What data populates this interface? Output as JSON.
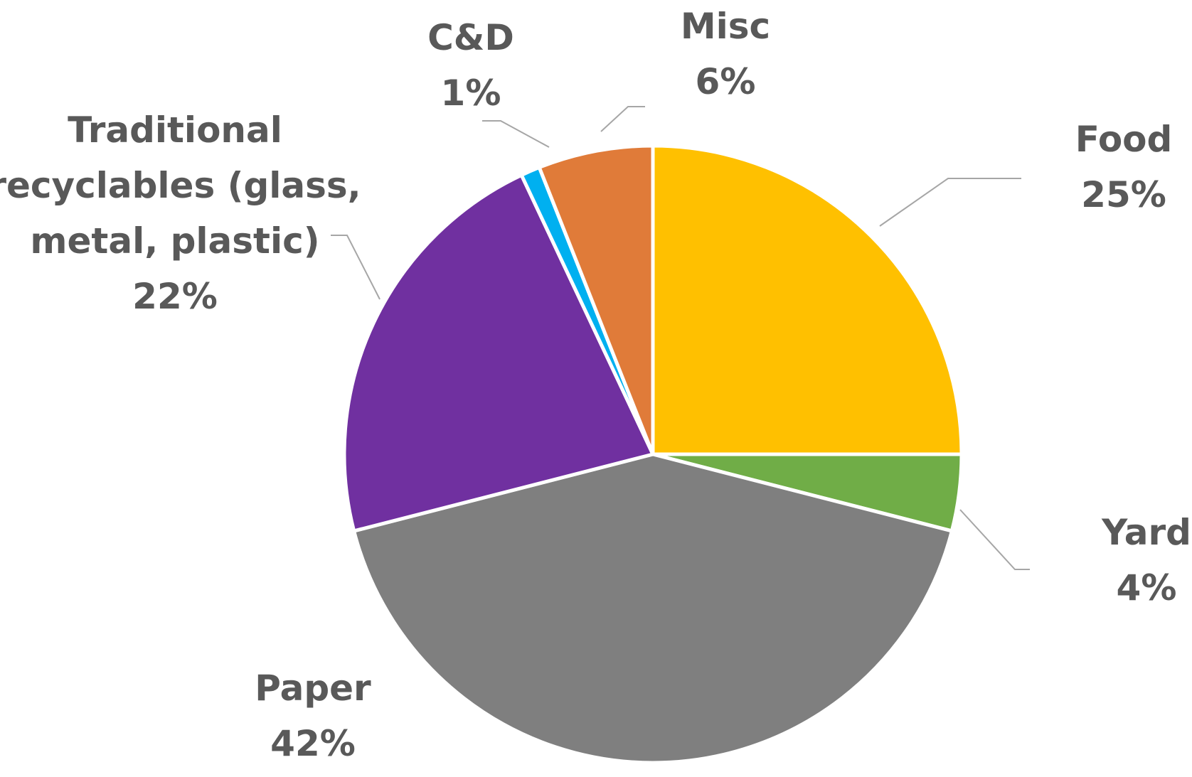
{
  "chart_data": {
    "type": "pie",
    "title": "",
    "start_angle_deg": 0,
    "direction": "clockwise",
    "slices": [
      {
        "label": "Food",
        "value": 25,
        "percent_label": "25%",
        "color": "#FFC000"
      },
      {
        "label": "Yard",
        "value": 4,
        "percent_label": "4%",
        "color": "#70AD47"
      },
      {
        "label": "Paper",
        "value": 42,
        "percent_label": "42%",
        "color": "#7F7F7F"
      },
      {
        "label_lines": [
          "Traditional",
          "recyclables (glass,",
          "metal, plastic)"
        ],
        "value": 22,
        "percent_label": "22%",
        "color": "#7030A0"
      },
      {
        "label": "C&D",
        "value": 1,
        "percent_label": "1%",
        "color": "#00B0F0"
      },
      {
        "label": "Misc",
        "value": 6,
        "percent_label": "6%",
        "color": "#E07B39"
      }
    ],
    "legend": "none",
    "data_labels": "outside with leader lines"
  }
}
